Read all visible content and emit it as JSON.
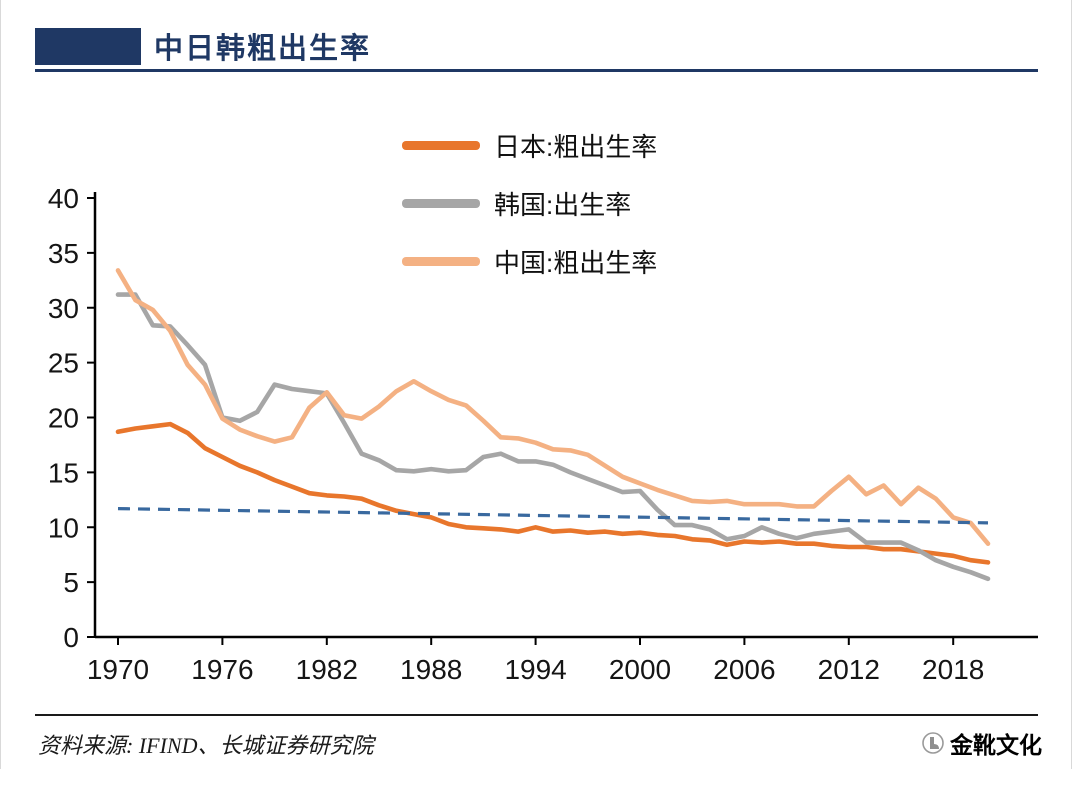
{
  "header": {
    "title": "中日韩粗出生率",
    "accent_color": "#1F3864"
  },
  "footer": {
    "source": "资料来源: IFIND、长城证券研究院",
    "brand": "金靴文化"
  },
  "chart_data": {
    "type": "line",
    "title": "中日韩粗出生率",
    "xlabel": "",
    "ylabel": "",
    "xlim": [
      1970,
      2021
    ],
    "ylim": [
      0,
      40
    ],
    "grid": false,
    "legend_position": "top-center",
    "x_start": 1970,
    "x": [
      1970,
      1971,
      1972,
      1973,
      1974,
      1975,
      1976,
      1977,
      1978,
      1979,
      1980,
      1981,
      1982,
      1983,
      1984,
      1985,
      1986,
      1987,
      1988,
      1989,
      1990,
      1991,
      1992,
      1993,
      1994,
      1995,
      1996,
      1997,
      1998,
      1999,
      2000,
      2001,
      2002,
      2003,
      2004,
      2005,
      2006,
      2007,
      2008,
      2009,
      2010,
      2011,
      2012,
      2013,
      2014,
      2015,
      2016,
      2017,
      2018,
      2019,
      2020
    ],
    "xticks": [
      1970,
      1976,
      1982,
      1988,
      1994,
      2000,
      2006,
      2012,
      2018
    ],
    "yticks": [
      0,
      5,
      10,
      15,
      20,
      25,
      30,
      35,
      40
    ],
    "series": [
      {
        "name": "日本:粗出生率",
        "color": "#E8762C",
        "values": [
          18.7,
          19.0,
          19.2,
          19.4,
          18.6,
          17.2,
          16.4,
          15.6,
          15.0,
          14.3,
          13.7,
          13.1,
          12.9,
          12.8,
          12.6,
          12.0,
          11.5,
          11.2,
          10.9,
          10.3,
          10.0,
          9.9,
          9.8,
          9.6,
          10.0,
          9.6,
          9.7,
          9.5,
          9.6,
          9.4,
          9.5,
          9.3,
          9.2,
          8.9,
          8.8,
          8.4,
          8.7,
          8.6,
          8.7,
          8.5,
          8.5,
          8.3,
          8.2,
          8.2,
          8.0,
          8.0,
          7.8,
          7.6,
          7.4,
          7.0,
          6.8
        ]
      },
      {
        "name": "韩国:出生率",
        "color": "#A6A6A6",
        "values": [
          31.2,
          31.2,
          28.4,
          28.3,
          26.6,
          24.8,
          20.0,
          19.7,
          20.5,
          23.0,
          22.6,
          22.4,
          22.2,
          19.5,
          16.7,
          16.1,
          15.2,
          15.1,
          15.3,
          15.1,
          15.2,
          16.4,
          16.7,
          16.0,
          16.0,
          15.7,
          15.0,
          14.4,
          13.8,
          13.2,
          13.3,
          11.6,
          10.2,
          10.2,
          9.8,
          8.9,
          9.2,
          10.0,
          9.4,
          9.0,
          9.4,
          9.6,
          9.8,
          8.6,
          8.6,
          8.6,
          7.9,
          7.0,
          6.4,
          5.9,
          5.3
        ]
      },
      {
        "name": "中国:粗出生率",
        "color": "#F4B183",
        "values": [
          33.4,
          30.7,
          29.8,
          27.9,
          24.8,
          23.0,
          19.9,
          18.9,
          18.3,
          17.8,
          18.2,
          20.9,
          22.3,
          20.2,
          19.9,
          21.0,
          22.4,
          23.3,
          22.4,
          21.6,
          21.1,
          19.7,
          18.2,
          18.1,
          17.7,
          17.1,
          17.0,
          16.6,
          15.6,
          14.6,
          14.0,
          13.4,
          12.9,
          12.4,
          12.3,
          12.4,
          12.1,
          12.1,
          12.1,
          11.9,
          11.9,
          13.3,
          14.6,
          13.0,
          13.8,
          12.1,
          13.6,
          12.6,
          10.9,
          10.4,
          8.5
        ]
      }
    ],
    "reference_line": {
      "style": "dashed",
      "color": "#39699F",
      "points": [
        [
          1970,
          11.7
        ],
        [
          2020,
          10.4
        ]
      ]
    }
  }
}
